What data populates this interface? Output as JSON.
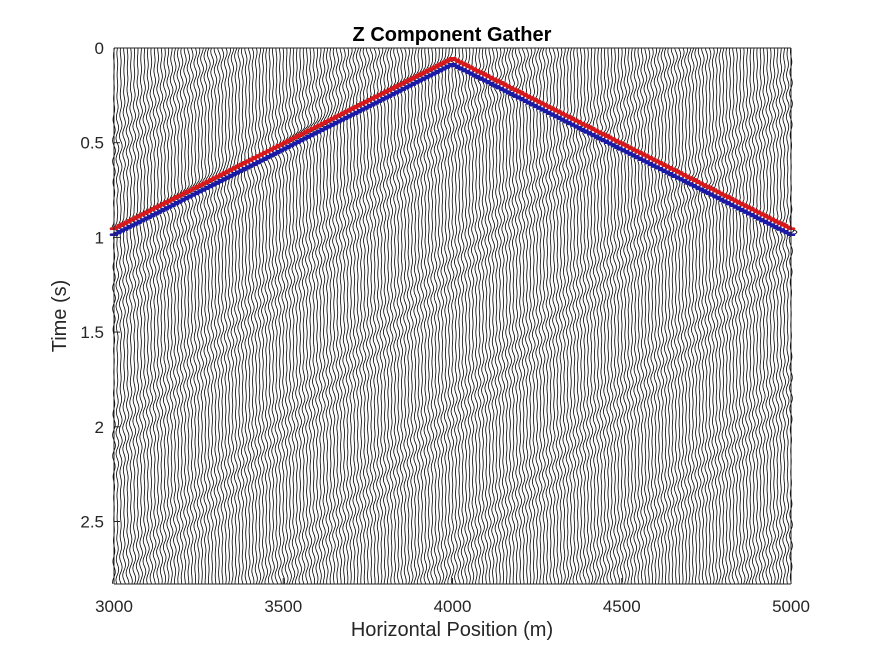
{
  "chart_data": {
    "type": "line",
    "title": "Z Component Gather",
    "xlabel": "Horizontal Position (m)",
    "ylabel": "Time (s)",
    "xlim": [
      3000,
      5000
    ],
    "ylim": [
      0,
      2.83
    ],
    "y_reversed": true,
    "grid": false,
    "x_ticks": [
      3000,
      3500,
      4000,
      4500,
      5000
    ],
    "x_tick_labels": [
      "3000",
      "3500",
      "4000",
      "4500",
      "5000"
    ],
    "y_ticks": [
      0,
      0.5,
      1,
      1.5,
      2,
      2.5
    ],
    "y_tick_labels": [
      "0",
      "0.5",
      "1",
      "1.5",
      "2",
      "2.5"
    ],
    "trace_spacing": 10,
    "source_position": 4000,
    "source_time": 0.07,
    "direct_wave_moveout_s_per_m": 0.0009,
    "trace_color": "#000000",
    "positive_arrival_color": "#d7191c",
    "negative_arrival_color": "#1a1aa6",
    "background_color": "#ffffff"
  }
}
